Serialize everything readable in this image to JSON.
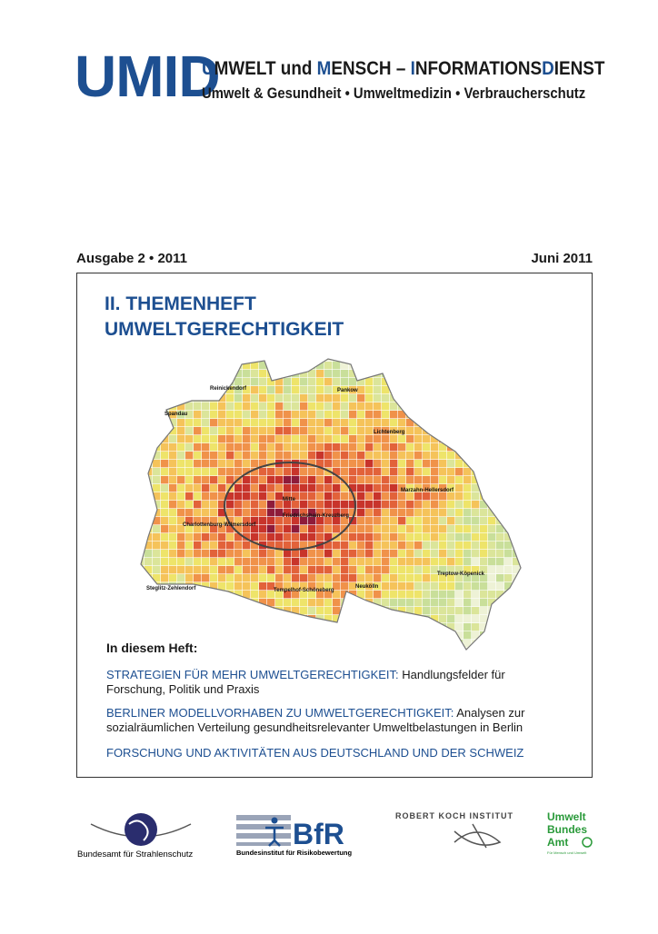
{
  "header": {
    "logo": "UMID",
    "title_parts": [
      "U",
      "MWELT und ",
      "M",
      "ENSCH – ",
      "I",
      "NFORMATIONS",
      "D",
      "IENST"
    ],
    "subtitle": "Umwelt & Gesundheit • Umweltmedizin • Verbraucherschutz"
  },
  "issue": {
    "number": "Ausgabe 2 • 2011",
    "date": "Juni 2011"
  },
  "box": {
    "kicker": "II. THEMENHEFT",
    "title": "UMWELTGERECHTIGKEIT",
    "map_labels": [
      "Reinickendorf",
      "Pankow",
      "Spandau",
      "Lichtenberg",
      "Mitte",
      "Friedrichshain-Kreuzberg",
      "Marzahn-Hellersdorf",
      "Charlottenburg-Wilmersdorf",
      "Steglitz-Zehlendorf",
      "Tempelhof-Schöneberg",
      "Neukölln",
      "Treptow-Köpenick"
    ],
    "contents_heading": "In diesem Heft:",
    "items": [
      {
        "lead": "STRATEGIEN FÜR MEHR UMWELTGERECHTIGKEIT:",
        "text": " Handlungsfelder für Forschung, Politik und Praxis"
      },
      {
        "lead": "BERLINER MODELLVORHABEN ZU UMWELTGERECHTIGKEIT:",
        "text": " Analysen zur sozialräumlichen Verteilung gesundheitsrelevanter Umweltbelastungen in Berlin"
      },
      {
        "lead": "FORSCHUNG UND AKTIVITÄTEN AUS DEUTSCHLAND UND DER SCHWEIZ",
        "text": ""
      }
    ]
  },
  "footer": {
    "bfs": "Bundesamt für Strahlenschutz",
    "bfr": "BfR",
    "bfr_name": "Bundesinstitut für Risikobewertung",
    "rki": "ROBERT KOCH INSTITUT",
    "uba": [
      "Umwelt",
      "Bundes",
      "Amt"
    ],
    "uba_claim": "Für Mensch und Umwelt"
  }
}
